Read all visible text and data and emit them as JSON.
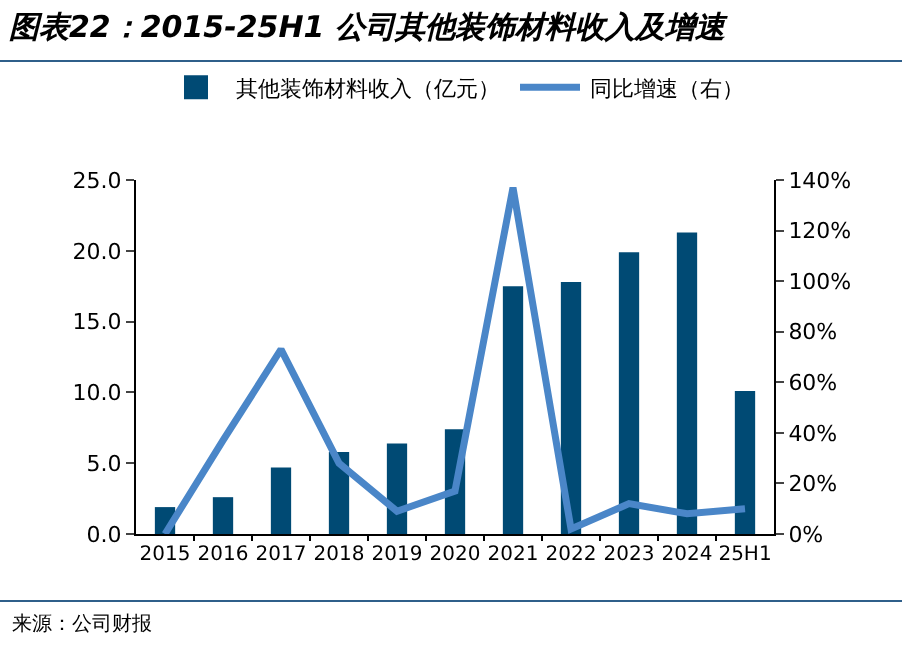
{
  "chart_data": {
    "type": "bar",
    "title": "图表22：2015-25H1 公司其他装饰材料收入及增速",
    "categories": [
      "2015",
      "2016",
      "2017",
      "2018",
      "2019",
      "2020",
      "2021",
      "2022",
      "2023",
      "2024",
      "25H1"
    ],
    "series": [
      {
        "name": "其他装饰材料收入（亿元）",
        "color": "#004a74",
        "values": [
          1.9,
          2.6,
          4.7,
          5.8,
          6.4,
          7.4,
          17.5,
          17.8,
          19.9,
          21.3,
          10.1
        ]
      },
      {
        "name": "同比增速（右）",
        "type": "line",
        "axis": "y2",
        "color": "#4a86c8",
        "values": [
          0,
          37,
          73,
          28,
          9,
          17,
          137,
          2,
          12,
          8,
          10
        ]
      }
    ],
    "ylim": [
      0,
      25
    ],
    "yticks": [
      {
        "value": 0,
        "label": "0.0"
      },
      {
        "value": 5,
        "label": "5.0"
      },
      {
        "value": 10,
        "label": "10.0"
      },
      {
        "value": 15,
        "label": "15.0"
      },
      {
        "value": 20,
        "label": "20.0"
      },
      {
        "value": 25,
        "label": "25.0"
      }
    ],
    "y2lim": [
      0,
      140
    ],
    "y2ticks": [
      {
        "value": 0,
        "label": "0%"
      },
      {
        "value": 20,
        "label": "20%"
      },
      {
        "value": 40,
        "label": "40%"
      },
      {
        "value": 60,
        "label": "60%"
      },
      {
        "value": 80,
        "label": "80%"
      },
      {
        "value": 100,
        "label": "100%"
      },
      {
        "value": 120,
        "label": "120%"
      },
      {
        "value": 140,
        "label": "140%"
      }
    ],
    "grid": false,
    "legend": "top",
    "marker": "none",
    "line_style": "solid",
    "annotations": [
      "来源：公司财报"
    ]
  }
}
